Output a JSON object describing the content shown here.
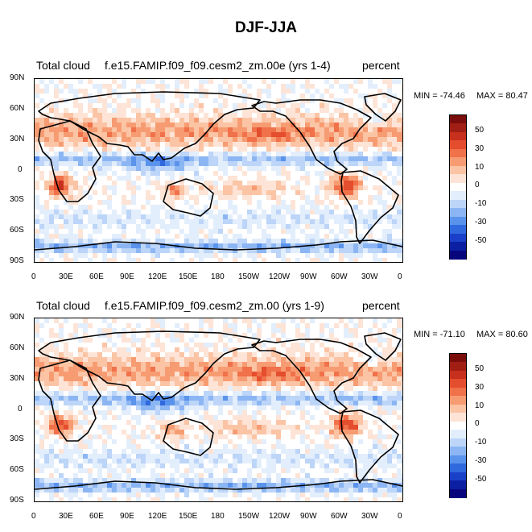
{
  "main_title": "DJF-JJA",
  "colors": {
    "colorbar_bands": [
      "#08067d",
      "#0b1fa3",
      "#1a3fc8",
      "#3068de",
      "#5a93ec",
      "#8cb6f3",
      "#bcd5f8",
      "#e3eefc",
      "#ffffff",
      "#fde4d6",
      "#fbc4a5",
      "#f79c72",
      "#f0714a",
      "#e44d2d",
      "#c7301c",
      "#a11e14",
      "#7a0d0b"
    ]
  },
  "chart_data": [
    {
      "type": "heatmap",
      "variable": "Total cloud",
      "case": "f.e15.FAMIP.f09_f09.cesm2_zm.00e (yrs 1-4)",
      "units": "percent",
      "min_label": "MIN = -74.46",
      "max_label": "MAX =  80.47",
      "min": -74.46,
      "max": 80.47,
      "xticks": [
        "0",
        "30E",
        "60E",
        "90E",
        "120E",
        "150E",
        "180",
        "150W",
        "120W",
        "90W",
        "60W",
        "30W",
        "0"
      ],
      "yticks": [
        "90N",
        "60N",
        "30N",
        "0",
        "30S",
        "60S",
        "90S"
      ],
      "xlim": [
        0,
        360
      ],
      "ylim": [
        -90,
        90
      ],
      "colorbar_labels": [
        "50",
        "30",
        "10",
        "0",
        "-10",
        "-30",
        "-50"
      ],
      "contour_interval": 10
    },
    {
      "type": "heatmap",
      "variable": "Total cloud",
      "case": "f.e15.FAMIP.f09_f09.cesm2_zm.00 (yrs 1-9)",
      "units": "percent",
      "min_label": "MIN = -71.10",
      "max_label": "MAX =  80.60",
      "min": -71.1,
      "max": 80.6,
      "xticks": [
        "0",
        "30E",
        "60E",
        "90E",
        "120E",
        "150E",
        "180",
        "150W",
        "120W",
        "90W",
        "60W",
        "30W",
        "0"
      ],
      "yticks": [
        "90N",
        "60N",
        "30N",
        "0",
        "30S",
        "60S",
        "90S"
      ],
      "xlim": [
        0,
        360
      ],
      "ylim": [
        -90,
        90
      ],
      "colorbar_labels": [
        "50",
        "30",
        "10",
        "0",
        "-10",
        "-30",
        "-50"
      ],
      "contour_interval": 10
    }
  ]
}
